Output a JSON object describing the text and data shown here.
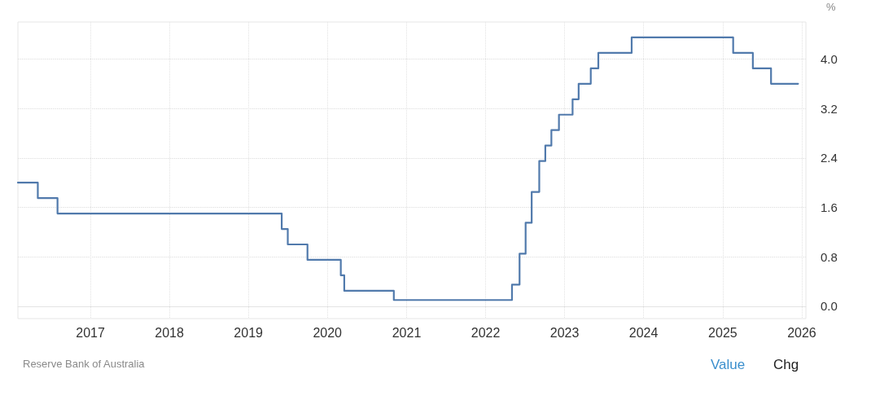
{
  "chart_data": {
    "type": "step",
    "ylabel": "%",
    "annotations": [
      "Reserve Bank of Australia",
      "Value",
      "Chg"
    ],
    "x": [
      "2016-02-01",
      "2016-05-03",
      "2016-08-02",
      "2019-06-04",
      "2019-07-02",
      "2019-10-01",
      "2020-03-03",
      "2020-03-19",
      "2020-11-03",
      "2022-05-03",
      "2022-06-07",
      "2022-07-05",
      "2022-08-02",
      "2022-09-06",
      "2022-10-04",
      "2022-11-01",
      "2022-12-06",
      "2023-02-07",
      "2023-03-07",
      "2023-05-02",
      "2023-06-06",
      "2023-11-07",
      "2025-02-18",
      "2025-05-20",
      "2025-08-12",
      "2025-12-15"
    ],
    "series": [
      {
        "color": "#517aac",
        "values": [
          2.0,
          1.75,
          1.5,
          1.25,
          1.0,
          0.75,
          0.5,
          0.25,
          0.1,
          0.35,
          0.85,
          1.35,
          1.85,
          2.35,
          2.6,
          2.85,
          3.1,
          3.35,
          3.6,
          3.85,
          4.1,
          4.35,
          4.1,
          3.85,
          3.6,
          3.6
        ]
      }
    ],
    "xlim": [
      "2016-02-01",
      "2026-01-20"
    ],
    "xticks": [
      "2017",
      "2018",
      "2019",
      "2020",
      "2021",
      "2022",
      "2023",
      "2024",
      "2025",
      "2026"
    ],
    "ylim": [
      -0.2,
      4.6
    ],
    "yticks": [
      {
        "value": 0,
        "label": "0.0"
      },
      {
        "value": 0.8,
        "label": "0.8"
      },
      {
        "value": 1.6,
        "label": "1.6"
      },
      {
        "value": 2.4,
        "label": "2.4"
      },
      {
        "value": 3.2,
        "label": "3.2"
      },
      {
        "value": 4.0,
        "label": "4.0"
      }
    ],
    "grid": true
  }
}
